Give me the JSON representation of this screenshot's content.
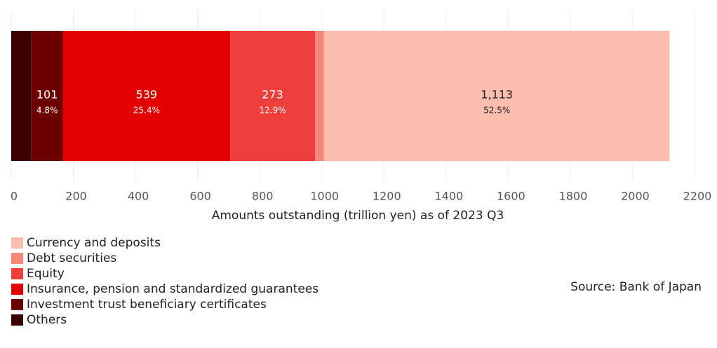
{
  "chart_data": {
    "type": "stacked-bar-horizontal",
    "x_label": "Amounts outstanding (trillion yen) as of 2023 Q3",
    "source": "Source: Bank of Japan",
    "xlim": [
      0,
      2200
    ],
    "xticks": [
      0,
      200,
      400,
      600,
      800,
      1000,
      1200,
      1400,
      1600,
      1800,
      2000,
      2200
    ],
    "grid": true,
    "series": [
      {
        "name": "Others",
        "color": "#3b0000",
        "values": [
          65
        ]
      },
      {
        "name": "Investment trust beneficiary certificates",
        "color": "#6e0000",
        "values": [
          101
        ],
        "share_labels": [
          "4.8%"
        ]
      },
      {
        "name": "Insurance, pension and standardized guarantees",
        "color": "#e30000",
        "values": [
          539
        ],
        "share_labels": [
          "25.4%"
        ]
      },
      {
        "name": "Equity",
        "color": "#ee3f3c",
        "values": [
          273
        ],
        "share_labels": [
          "12.9%"
        ]
      },
      {
        "name": "Debt securities",
        "color": "#f5877b",
        "values": [
          29
        ]
      },
      {
        "name": "Currency and deposits",
        "color": "#fcbdb1",
        "values": [
          1113
        ],
        "value_labels": [
          "1,113"
        ],
        "share_labels": [
          "52.5%"
        ]
      }
    ]
  }
}
